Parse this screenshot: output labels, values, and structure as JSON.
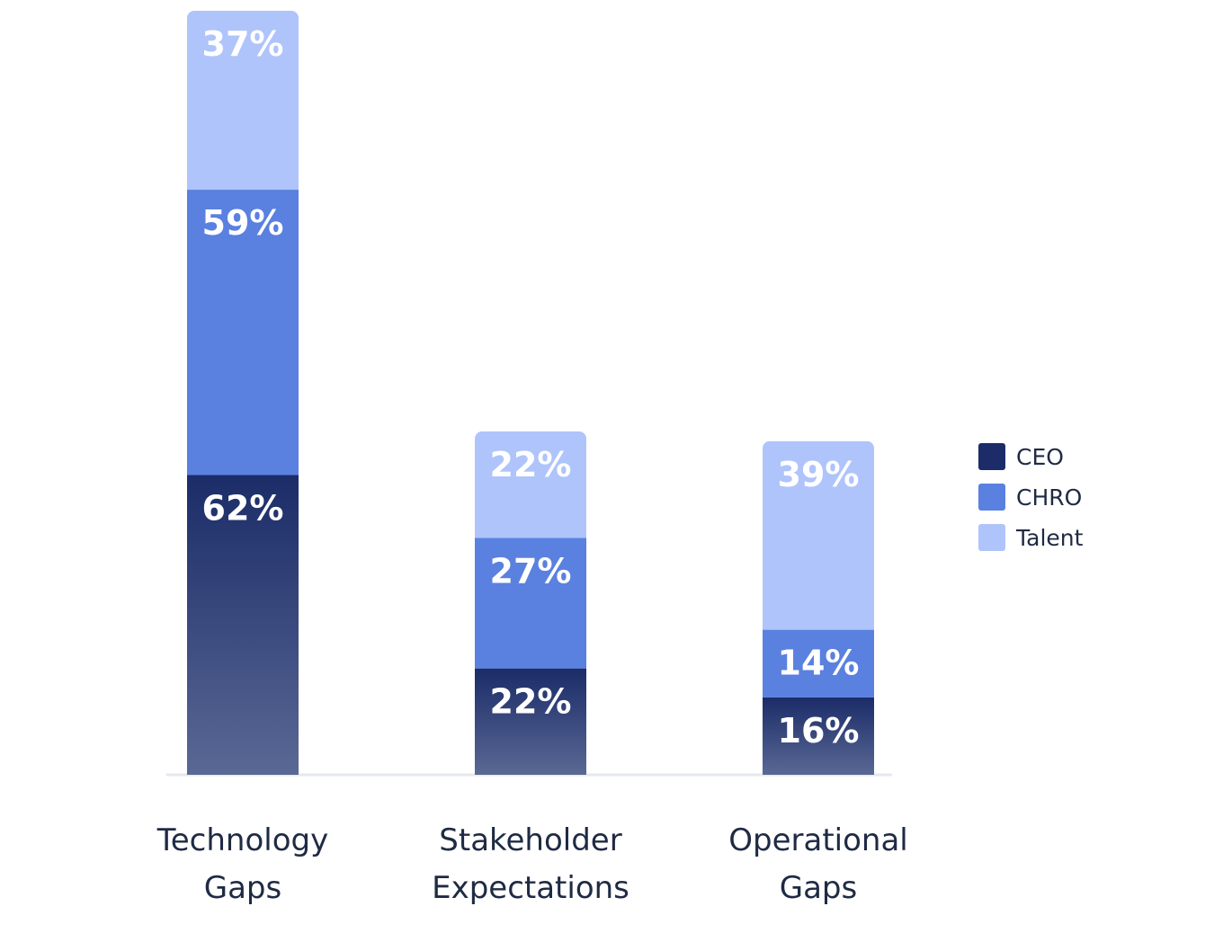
{
  "chart_data": {
    "type": "bar",
    "stacked": true,
    "title": "",
    "xlabel": "",
    "ylabel": "",
    "categories": [
      [
        "Technology",
        "Gaps"
      ],
      [
        "Stakeholder",
        "Expectations"
      ],
      [
        "Operational",
        "Gaps"
      ]
    ],
    "series": [
      {
        "name": "CEO",
        "values": [
          62,
          22,
          16
        ],
        "labels": [
          "62%",
          "22%",
          "16%"
        ],
        "color": "#1b2c68"
      },
      {
        "name": "CHRO",
        "values": [
          59,
          27,
          14
        ],
        "labels": [
          "59%",
          "27%",
          "14%"
        ],
        "color": "#5a80e0"
      },
      {
        "name": "Talent",
        "values": [
          37,
          22,
          39
        ],
        "labels": [
          "37%",
          "22%",
          "39%"
        ],
        "color": "#afc4fb"
      }
    ],
    "ylim": [
      0,
      158
    ],
    "grid": false,
    "legend_position": "right"
  }
}
